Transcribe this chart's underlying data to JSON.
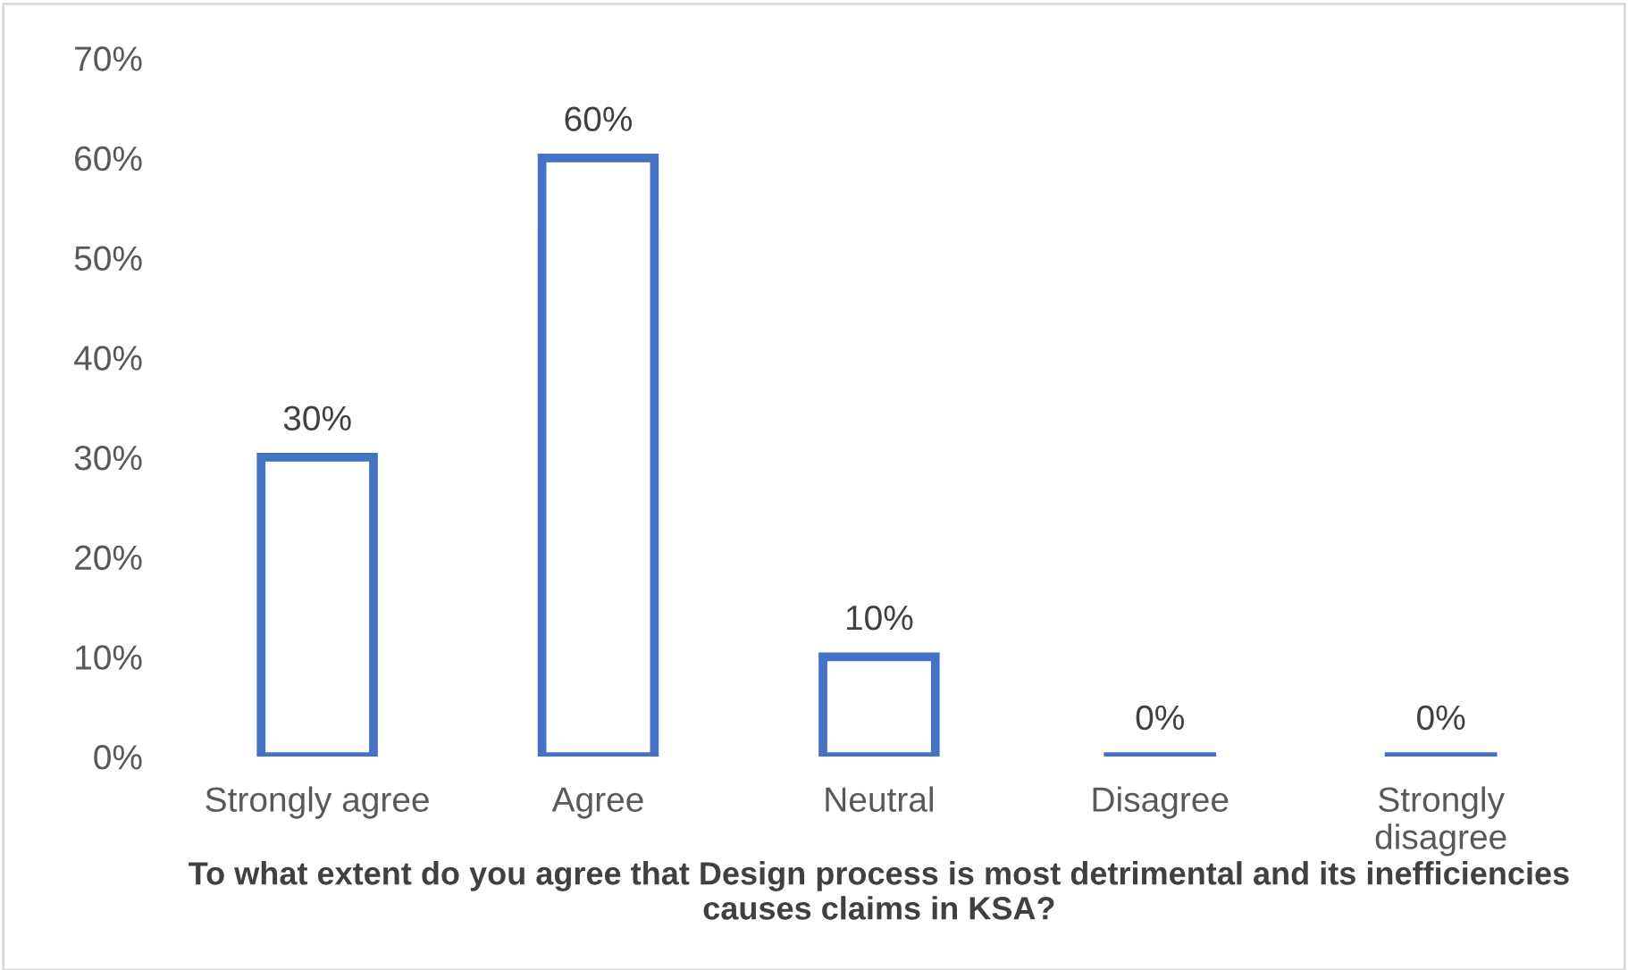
{
  "chart_data": {
    "type": "bar",
    "xlabel": "To what extent do you agree that Design process is most detrimental and its inefficiencies causes claims in KSA?",
    "categories": [
      "Strongly agree",
      "Agree",
      "Neutral",
      "Disagree",
      "Strongly disagree"
    ],
    "values": [
      30,
      60,
      10,
      0,
      0
    ],
    "value_labels": [
      "30%",
      "60%",
      "10%",
      "0%",
      "0%"
    ],
    "color": "#4472c4",
    "ylim": [
      0,
      70
    ],
    "yticks": [
      {
        "value": 0,
        "label": "0%"
      },
      {
        "value": 10,
        "label": "10%"
      },
      {
        "value": 20,
        "label": "20%"
      },
      {
        "value": 30,
        "label": "30%"
      },
      {
        "value": 40,
        "label": "40%"
      },
      {
        "value": 50,
        "label": "50%"
      },
      {
        "value": 60,
        "label": "60%"
      },
      {
        "value": 70,
        "label": "70%"
      }
    ],
    "grid": false,
    "legend": false
  }
}
